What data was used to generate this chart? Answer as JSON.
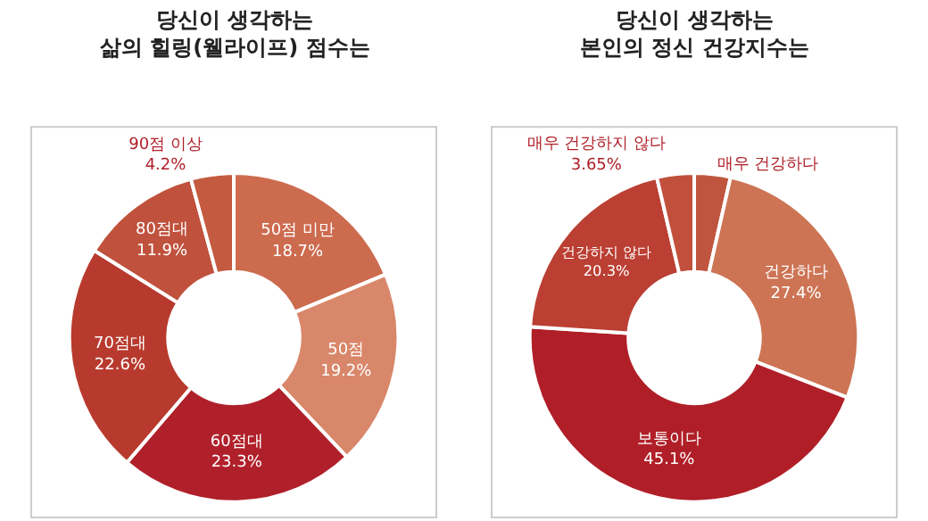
{
  "chart_data": [
    {
      "type": "donut",
      "title": "당신이 생각하는\n삶의 힐링(웰라이프) 점수는",
      "categories": [
        "50점 미만",
        "50점",
        "60점대",
        "70점대",
        "80점대",
        "90점 이상"
      ],
      "values": [
        18.7,
        19.2,
        23.3,
        22.6,
        11.9,
        4.2
      ],
      "value_labels": [
        "18.7%",
        "19.2%",
        "23.3%",
        "22.6%",
        "11.9%",
        "4.2%"
      ],
      "colors": [
        "#cd6b4f",
        "#d9876a",
        "#b0202a",
        "#b83a2e",
        "#c0513c",
        "#c45a40"
      ]
    },
    {
      "type": "donut",
      "title": "당신이 생각하는\n본인의 정신 건강지수는",
      "categories": [
        "매우 건강하다",
        "건강하다",
        "보통이다",
        "건강하지 않다",
        "매우 건강하지 않다"
      ],
      "values": [
        3.55,
        27.4,
        45.1,
        20.3,
        3.65
      ],
      "value_labels": [
        null,
        "27.4%",
        "45.1%",
        "20.3%",
        "3.65%"
      ],
      "colors": [
        "#c0553f",
        "#cd7455",
        "#b01f28",
        "#bb3f33",
        "#c0503c"
      ]
    }
  ]
}
